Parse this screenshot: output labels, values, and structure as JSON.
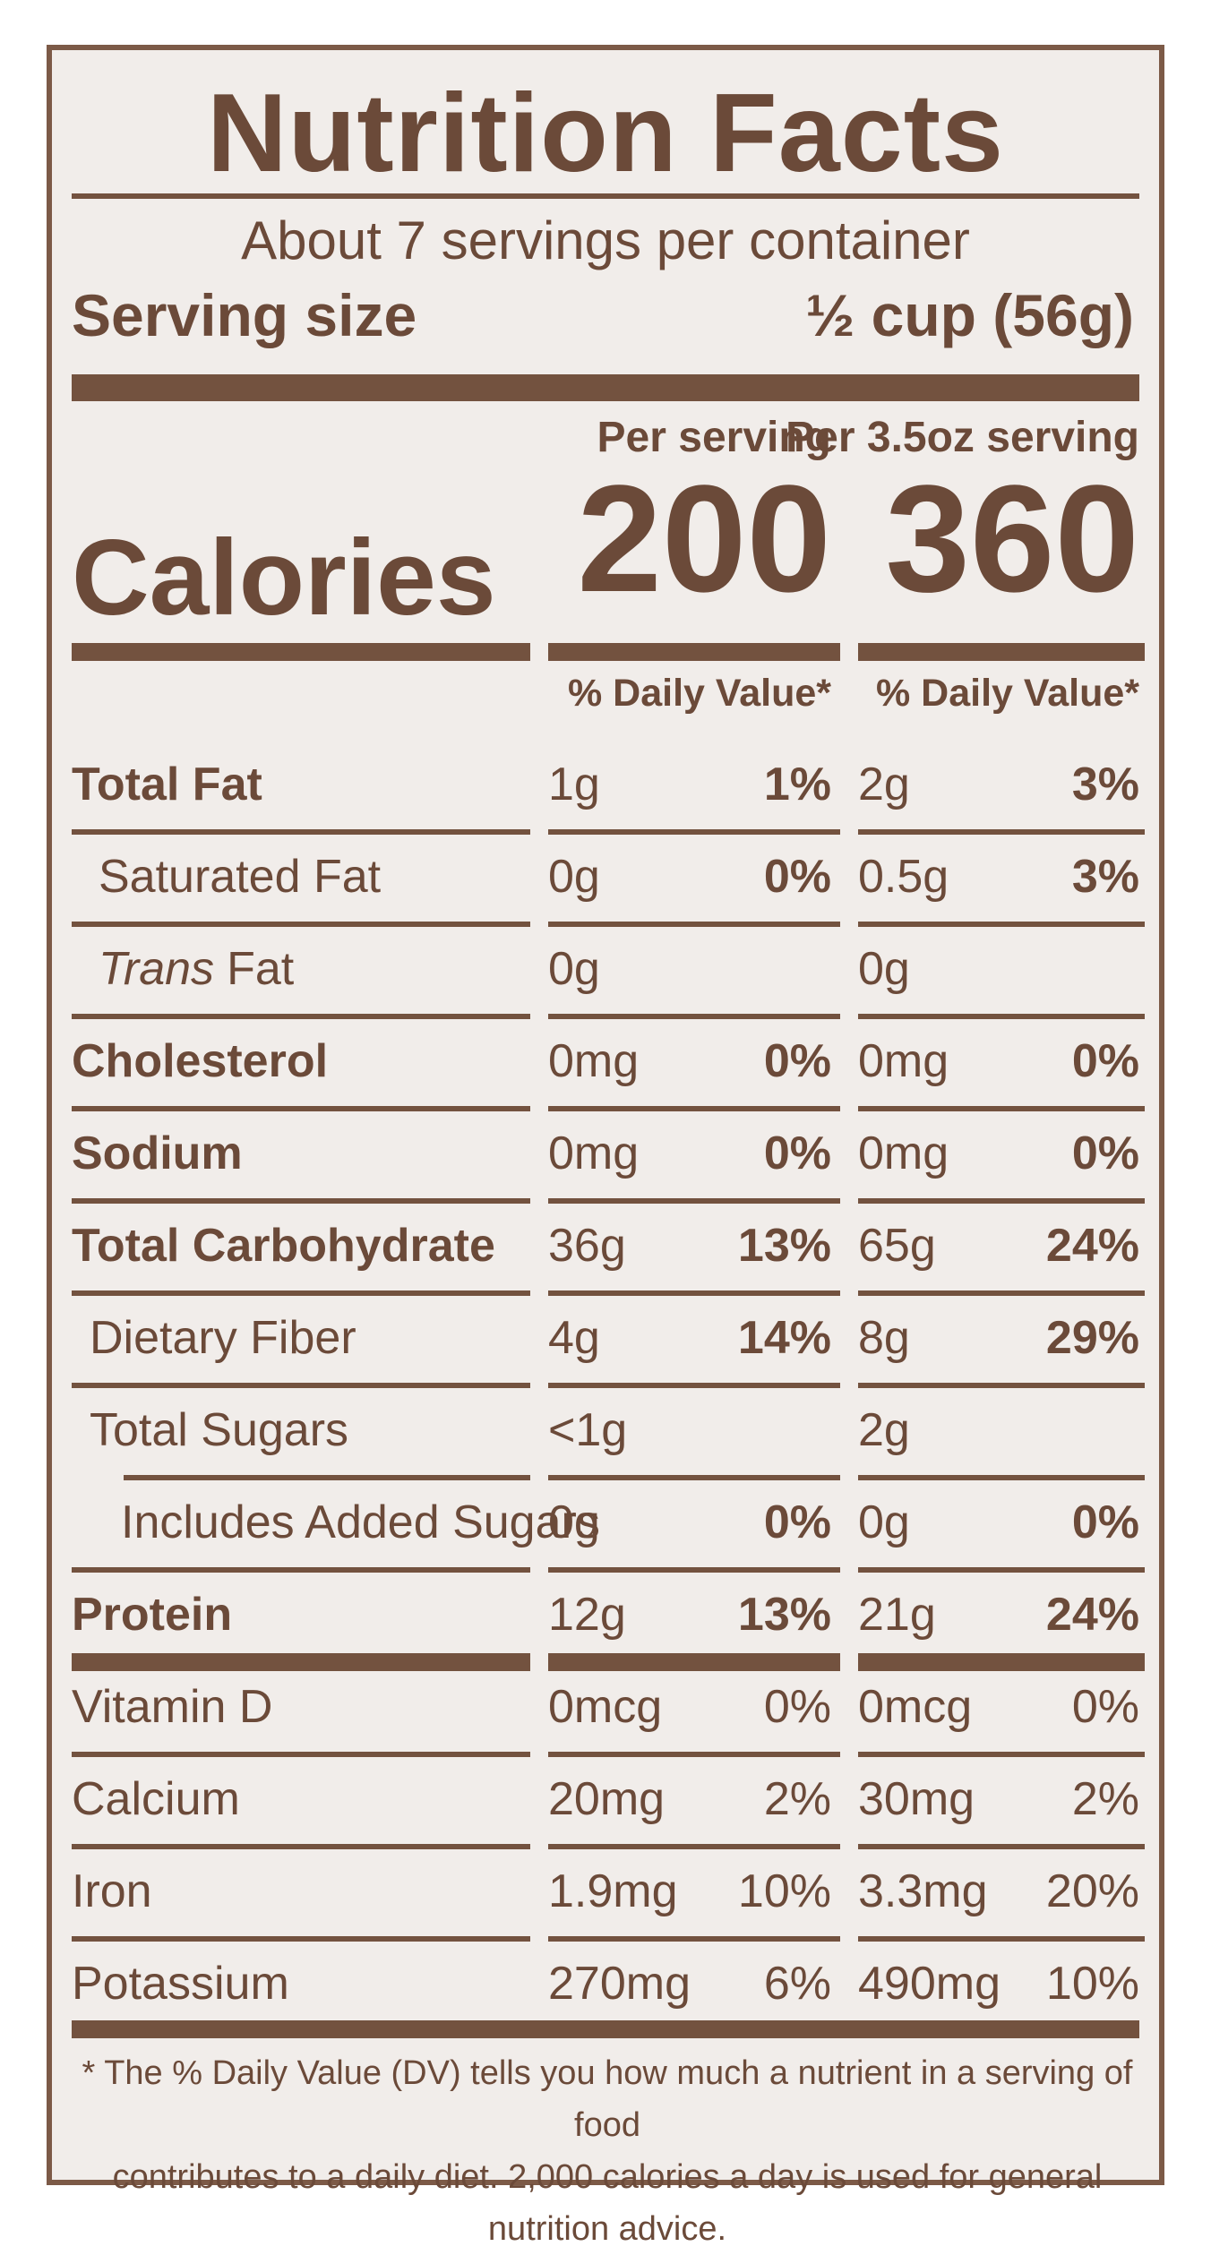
{
  "title": "Nutrition Facts",
  "servings_per_container": "About 7 servings per container",
  "serving_size": {
    "label": "Serving size",
    "value": "½ cup (56g)"
  },
  "column_headers": {
    "per_serving": "Per serving",
    "per_3_5oz": "Per 3.5oz serving"
  },
  "calories": {
    "label": "Calories",
    "per_serving": "200",
    "per_3_5oz": "360"
  },
  "daily_value_header": "% Daily Value*",
  "nutrients": [
    {
      "label": "Total Fat",
      "amt1": "1g",
      "pct1": "1%",
      "amt2": "2g",
      "pct2": "3%"
    },
    {
      "label": "Saturated Fat",
      "amt1": "0g",
      "pct1": "0%",
      "amt2": "0.5g",
      "pct2": "3%"
    },
    {
      "label_italic": "Trans",
      "label": "Fat",
      "amt1": "0g",
      "pct1": "",
      "amt2": "0g",
      "pct2": ""
    },
    {
      "label": "Cholesterol",
      "amt1": "0mg",
      "pct1": "0%",
      "amt2": "0mg",
      "pct2": "0%"
    },
    {
      "label": "Sodium",
      "amt1": "0mg",
      "pct1": "0%",
      "amt2": "0mg",
      "pct2": "0%"
    },
    {
      "label": "Total Carbohydrate",
      "amt1": "36g",
      "pct1": "13%",
      "amt2": "65g",
      "pct2": "24%"
    },
    {
      "label": "Dietary Fiber",
      "amt1": "4g",
      "pct1": "14%",
      "amt2": "8g",
      "pct2": "29%"
    },
    {
      "label": "Total Sugars",
      "amt1": "<1g",
      "pct1": "",
      "amt2": "2g",
      "pct2": ""
    },
    {
      "label": "Includes Added Sugars",
      "amt1": "0g",
      "pct1": "0%",
      "amt2": "0g",
      "pct2": "0%"
    },
    {
      "label": "Protein",
      "amt1": "12g",
      "pct1": "13%",
      "amt2": "21g",
      "pct2": "24%"
    },
    {
      "label": "Vitamin D",
      "amt1": "0mcg",
      "pct1": "0%",
      "amt2": "0mcg",
      "pct2": "0%"
    },
    {
      "label": "Calcium",
      "amt1": "20mg",
      "pct1": "2%",
      "amt2": "30mg",
      "pct2": "2%"
    },
    {
      "label": "Iron",
      "amt1": "1.9mg",
      "pct1": "10%",
      "amt2": "3.3mg",
      "pct2": "20%"
    },
    {
      "label": "Potassium",
      "amt1": "270mg",
      "pct1": "6%",
      "amt2": "490mg",
      "pct2": "10%"
    }
  ],
  "footnote_line1": "* The % Daily Value (DV) tells you how much a nutrient in a serving of food",
  "footnote_line2": "contributes to a daily diet. 2,000 calories a day is used for general nutrition advice.",
  "colors": {
    "ink": "#6b4a39",
    "rule": "#73523f",
    "paper": "#f1edea"
  }
}
